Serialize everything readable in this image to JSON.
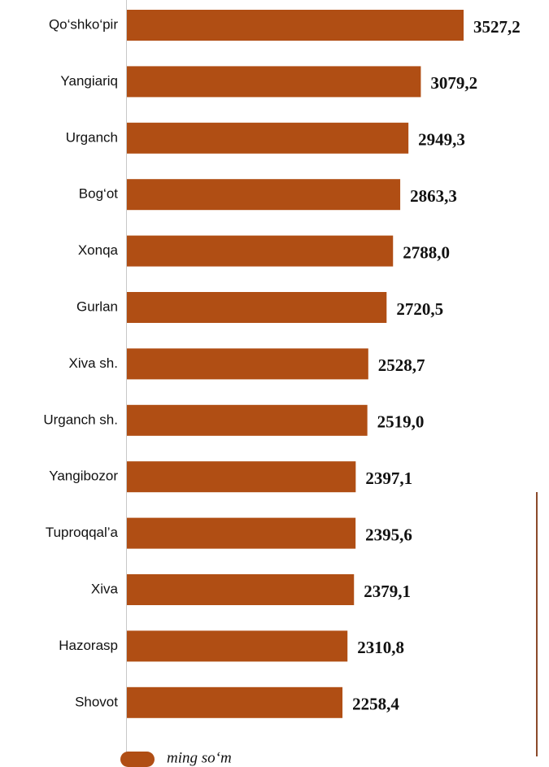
{
  "chart_data": {
    "type": "bar",
    "orientation": "horizontal",
    "categories": [
      "Qo‘shko‘pir",
      "Yangiariq",
      "Urganch",
      "Bog‘ot",
      "Xonqa",
      "Gurlan",
      "Xiva sh.",
      "Urganch sh.",
      "Yangibozor",
      "Tuproqqal’a",
      "Xiva",
      "Hazorasp",
      "Shovot"
    ],
    "series": [
      {
        "name": "ming so‘m",
        "color": "#b04e14",
        "values": [
          3527.2,
          3079.2,
          2949.3,
          2863.3,
          2788.0,
          2720.5,
          2528.7,
          2519.0,
          2397.1,
          2395.6,
          2379.1,
          2310.8,
          2258.4
        ],
        "value_labels": [
          "3527,2",
          "3079,2",
          "2949,3",
          "2863,3",
          "2788,0",
          "2720,5",
          "2528,7",
          "2519,0",
          "2397,1",
          "2395,6",
          "2379,1",
          "2310,8",
          "2258,4"
        ]
      }
    ]
  }
}
